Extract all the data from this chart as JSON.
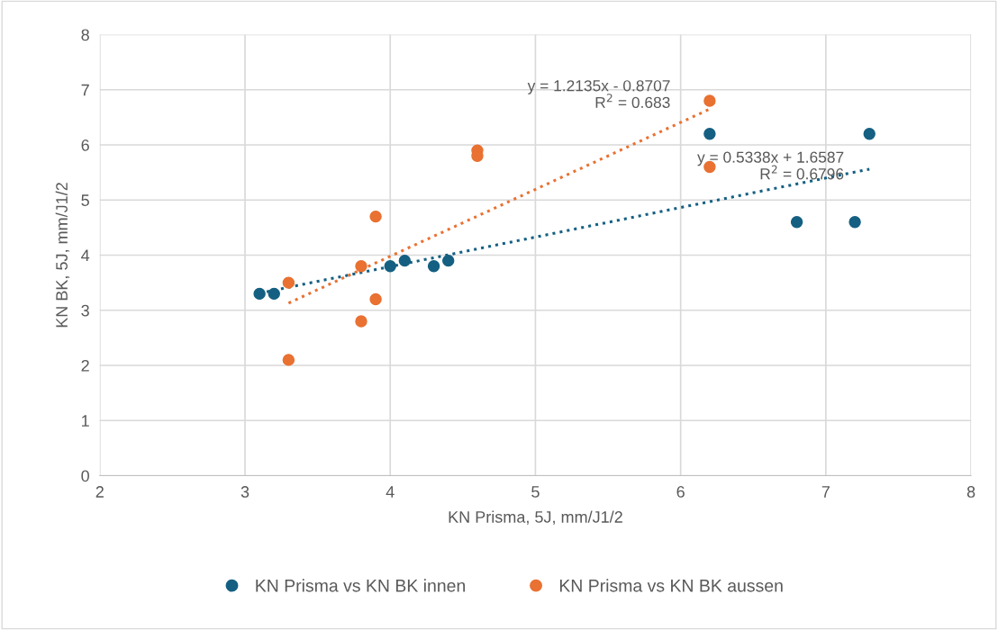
{
  "chart_data": {
    "type": "scatter",
    "xlabel": "KN Prisma, 5J, mm/J1/2",
    "ylabel": "KN BK, 5J, mm/J1/2",
    "xlim": [
      2,
      8
    ],
    "xticks": [
      2,
      3,
      4,
      5,
      6,
      7,
      8
    ],
    "ylim": [
      0,
      8
    ],
    "yticks": [
      0,
      1,
      2,
      3,
      4,
      5,
      6,
      7,
      8
    ],
    "grid": true,
    "legend": "bottom",
    "series": [
      {
        "name": "KN Prisma vs KN BK innen",
        "marker": "circle",
        "color": "#156082",
        "x": [
          3.1,
          3.2,
          4.0,
          4.1,
          4.3,
          4.4,
          6.2,
          6.8,
          7.2,
          7.3
        ],
        "values": [
          3.3,
          3.3,
          3.8,
          3.9,
          3.8,
          3.9,
          6.2,
          4.6,
          4.6,
          6.2
        ]
      },
      {
        "name": "KN Prisma vs KN BK aussen",
        "marker": "circle",
        "color": "#e97132",
        "x": [
          3.3,
          3.3,
          3.8,
          3.8,
          3.9,
          3.9,
          4.6,
          4.6,
          6.2,
          6.2
        ],
        "values": [
          3.5,
          2.1,
          3.8,
          2.8,
          4.7,
          3.2,
          5.9,
          5.8,
          6.8,
          5.6
        ]
      },
      {
        "type": "line",
        "line_style": "dotted",
        "color": "#156082",
        "x": [
          3.1,
          7.3
        ],
        "values": [
          3.31,
          5.56
        ]
      },
      {
        "type": "line",
        "line_style": "dotted",
        "color": "#e97132",
        "x": [
          3.3,
          6.2
        ],
        "values": [
          3.13,
          6.65
        ]
      }
    ],
    "annotations": [
      "y = 1.2135x - 0.8707\nR$^{2}$ = 0.683",
      "y = 0.5338x + 1.6587\nR$^{2}$ = 0.6796"
    ]
  }
}
